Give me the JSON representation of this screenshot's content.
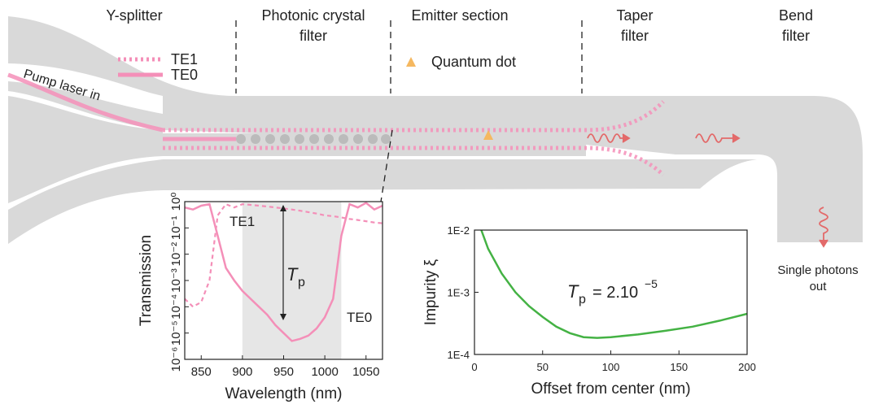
{
  "diagram": {
    "sections": {
      "y_splitter": "Y-splitter",
      "photonic_crystal": [
        "Photonic crystal",
        "filter"
      ],
      "emitter": "Emitter section",
      "taper": [
        "Taper",
        "filter"
      ],
      "bend": [
        "Bend",
        "filter"
      ]
    },
    "legend": {
      "te1": "TE1",
      "te0": "TE0",
      "quantum_dot": "Quantum dot"
    },
    "pump": "Pump laser in",
    "output": [
      "Single photons",
      "out"
    ]
  },
  "chart_data": [
    {
      "type": "line",
      "log_y": true,
      "x_label": "Wavelength (nm)",
      "y_label": "Transmission",
      "x": [
        830,
        840,
        850,
        860,
        870,
        880,
        890,
        900,
        910,
        920,
        930,
        940,
        950,
        960,
        970,
        980,
        990,
        1000,
        1010,
        1020,
        1030,
        1040,
        1050,
        1060,
        1070
      ],
      "series": [
        {
          "name": "TE1",
          "color": "#f48fb8",
          "dashed": true,
          "values": [
            0.0002,
            0.0001,
            0.00015,
            0.001,
            0.3,
            0.8,
            0.6,
            0.8,
            0.75,
            0.7,
            0.65,
            0.6,
            0.55,
            0.5,
            0.45,
            0.4,
            0.35,
            0.3,
            0.28,
            0.25,
            0.22,
            0.2,
            0.18,
            0.16,
            0.15
          ]
        },
        {
          "name": "TE0",
          "color": "#f48fb8",
          "dashed": false,
          "values": [
            0.6,
            0.5,
            0.7,
            0.8,
            0.05,
            0.003,
            0.001,
            0.0004,
            0.0002,
            0.0001,
            5e-05,
            2e-05,
            1e-05,
            5e-06,
            6e-06,
            8e-06,
            1.5e-05,
            4e-05,
            0.0002,
            0.05,
            0.8,
            0.6,
            0.9,
            0.5,
            0.7
          ]
        }
      ],
      "shaded_region": [
        900,
        1020
      ],
      "annotation": {
        "symbol": "T",
        "subscript": "p"
      },
      "xlim": [
        830,
        1070
      ],
      "xticks": [
        850,
        900,
        950,
        1000,
        1050
      ],
      "ylim": [
        1e-06,
        1
      ],
      "yticks": [
        {
          "value": 1e-06,
          "label": "10⁻⁶"
        },
        {
          "value": 1e-05,
          "label": "10⁻⁵"
        },
        {
          "value": 0.0001,
          "label": "10⁻⁴"
        },
        {
          "value": 0.001,
          "label": "10⁻³"
        },
        {
          "value": 0.01,
          "label": "10⁻²"
        },
        {
          "value": 0.1,
          "label": "10⁻¹"
        },
        {
          "value": 1,
          "label": "10⁰"
        }
      ]
    },
    {
      "type": "line",
      "log_y": true,
      "x_label": "Offset from center (nm)",
      "y_label": "Impurity ξ",
      "x": [
        5,
        10,
        20,
        30,
        40,
        50,
        60,
        70,
        80,
        90,
        100,
        120,
        140,
        160,
        180,
        200
      ],
      "series": [
        {
          "color": "#44b244",
          "dashed": false,
          "values": [
            0.01,
            0.005,
            0.002,
            0.001,
            0.0006,
            0.0004,
            0.00028,
            0.00022,
            0.00019,
            0.000185,
            0.00019,
            0.00021,
            0.00024,
            0.00028,
            0.00035,
            0.00045
          ]
        }
      ],
      "annotation": {
        "symbol": "T",
        "subscript": "p",
        "text": "= 2.10",
        "superscript": "−5"
      },
      "xlim": [
        0,
        200
      ],
      "xticks": [
        0,
        50,
        100,
        150,
        200
      ],
      "ylim": [
        0.0001,
        0.01
      ],
      "yticks": [
        {
          "value": 0.0001,
          "label": "1E-4"
        },
        {
          "value": 0.001,
          "label": "1E-3"
        },
        {
          "value": 0.01,
          "label": "1E-2"
        }
      ]
    }
  ]
}
